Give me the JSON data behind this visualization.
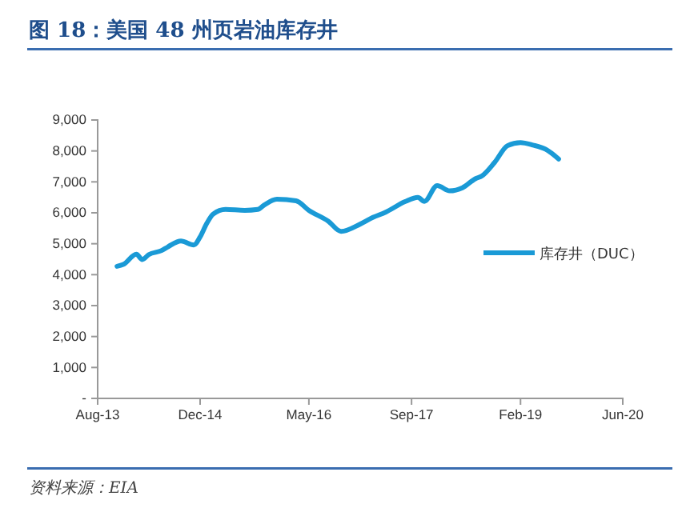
{
  "chart_data": {
    "type": "line",
    "title": "图 18：美国 48 州页岩油库存井",
    "x": [
      "2013-11",
      "2013-12",
      "2014-02",
      "2014-03",
      "2014-04",
      "2014-06",
      "2014-07",
      "2014-09",
      "2014-11",
      "2014-12",
      "2015-01",
      "2015-02",
      "2015-04",
      "2015-07",
      "2015-09",
      "2015-10",
      "2015-12",
      "2016-03",
      "2016-05",
      "2016-08",
      "2016-10",
      "2017-01",
      "2017-03",
      "2017-05",
      "2017-08",
      "2017-10",
      "2017-11",
      "2018-01",
      "2018-03",
      "2018-05",
      "2018-07",
      "2018-08",
      "2018-10",
      "2018-12",
      "2019-02",
      "2019-04",
      "2019-06",
      "2019-08"
    ],
    "series": [
      {
        "name": "库存井（DUC）",
        "color": "#1a9ad6",
        "values": [
          4270,
          4330,
          4660,
          4490,
          4650,
          4780,
          4900,
          5090,
          4960,
          5220,
          5650,
          5960,
          6110,
          6080,
          6110,
          6250,
          6440,
          6390,
          6080,
          5730,
          5400,
          5640,
          5850,
          6020,
          6360,
          6500,
          6370,
          6880,
          6710,
          6810,
          7100,
          7190,
          7630,
          8170,
          8270,
          8190,
          8050,
          7740
        ]
      }
    ],
    "xlim": [
      "2013-08",
      "2020-06"
    ],
    "xticks": [
      {
        "value": "2013-08",
        "label": "Aug-13"
      },
      {
        "value": "2014-12",
        "label": "Dec-14"
      },
      {
        "value": "2016-05",
        "label": "May-16"
      },
      {
        "value": "2017-09",
        "label": "Sep-17"
      },
      {
        "value": "2019-02",
        "label": "Feb-19"
      },
      {
        "value": "2020-06",
        "label": "Jun-20"
      }
    ],
    "ylim": [
      0,
      9000
    ],
    "yticks": [
      {
        "value": 0,
        "label": "-"
      },
      {
        "value": 1000,
        "label": "1,000"
      },
      {
        "value": 2000,
        "label": "2,000"
      },
      {
        "value": 3000,
        "label": "3,000"
      },
      {
        "value": 4000,
        "label": "4,000"
      },
      {
        "value": 5000,
        "label": "5,000"
      },
      {
        "value": 6000,
        "label": "6,000"
      },
      {
        "value": 7000,
        "label": "7,000"
      },
      {
        "value": 8000,
        "label": "8,000"
      },
      {
        "value": 9000,
        "label": "9,000"
      }
    ],
    "legend": "right",
    "grid": false,
    "marker": "none",
    "line_style": "solid",
    "annotations": [
      "资料来源：EIA"
    ]
  }
}
